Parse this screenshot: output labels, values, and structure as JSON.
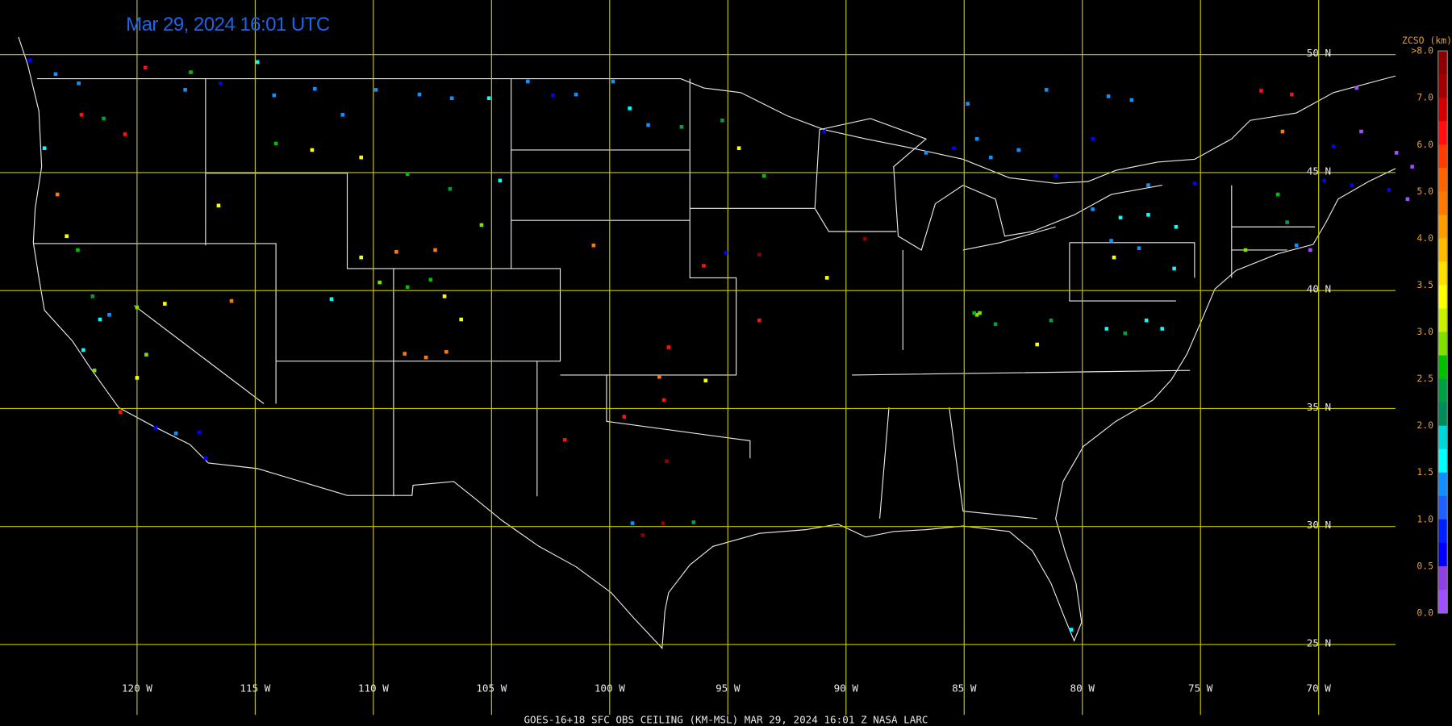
{
  "title": "Mar 29, 2024 16:01 UTC",
  "footer": "GOES-16+18  SFC OBS CEILING (KM-MSL)   MAR 29, 2024 16:01 Z   NASA LARC",
  "latitude_labels": [
    "50 N",
    "45 N",
    "40 N",
    "35 N",
    "30 N",
    "25 N"
  ],
  "longitude_labels": [
    "120 W",
    "115 W",
    "110 W",
    "105 W",
    "100 W",
    "95 W",
    "90 W",
    "85 W",
    "80 W",
    "75 W",
    "70 W"
  ],
  "legend": {
    "title": "ZCSO (km)",
    "labels": [
      ">8.0",
      "7.0",
      "6.0",
      "5.0",
      "4.0",
      "3.5",
      "3.0",
      "2.5",
      "2.0",
      "1.5",
      "1.0",
      "0.5",
      "0.0"
    ],
    "colors": [
      "#8b0000",
      "#a00000",
      "#d00000",
      "#ff1010",
      "#ff3c00",
      "#ff6400",
      "#ff7800",
      "#ff9c00",
      "#ffbc00",
      "#ffe000",
      "#ffff00",
      "#c8f000",
      "#80e000",
      "#00c000",
      "#00a040",
      "#008c5a",
      "#00d8d8",
      "#00ffff",
      "#1090ff",
      "#2060ff",
      "#0020ff",
      "#0000ff",
      "#9040e0",
      "#a050ff"
    ]
  }
}
